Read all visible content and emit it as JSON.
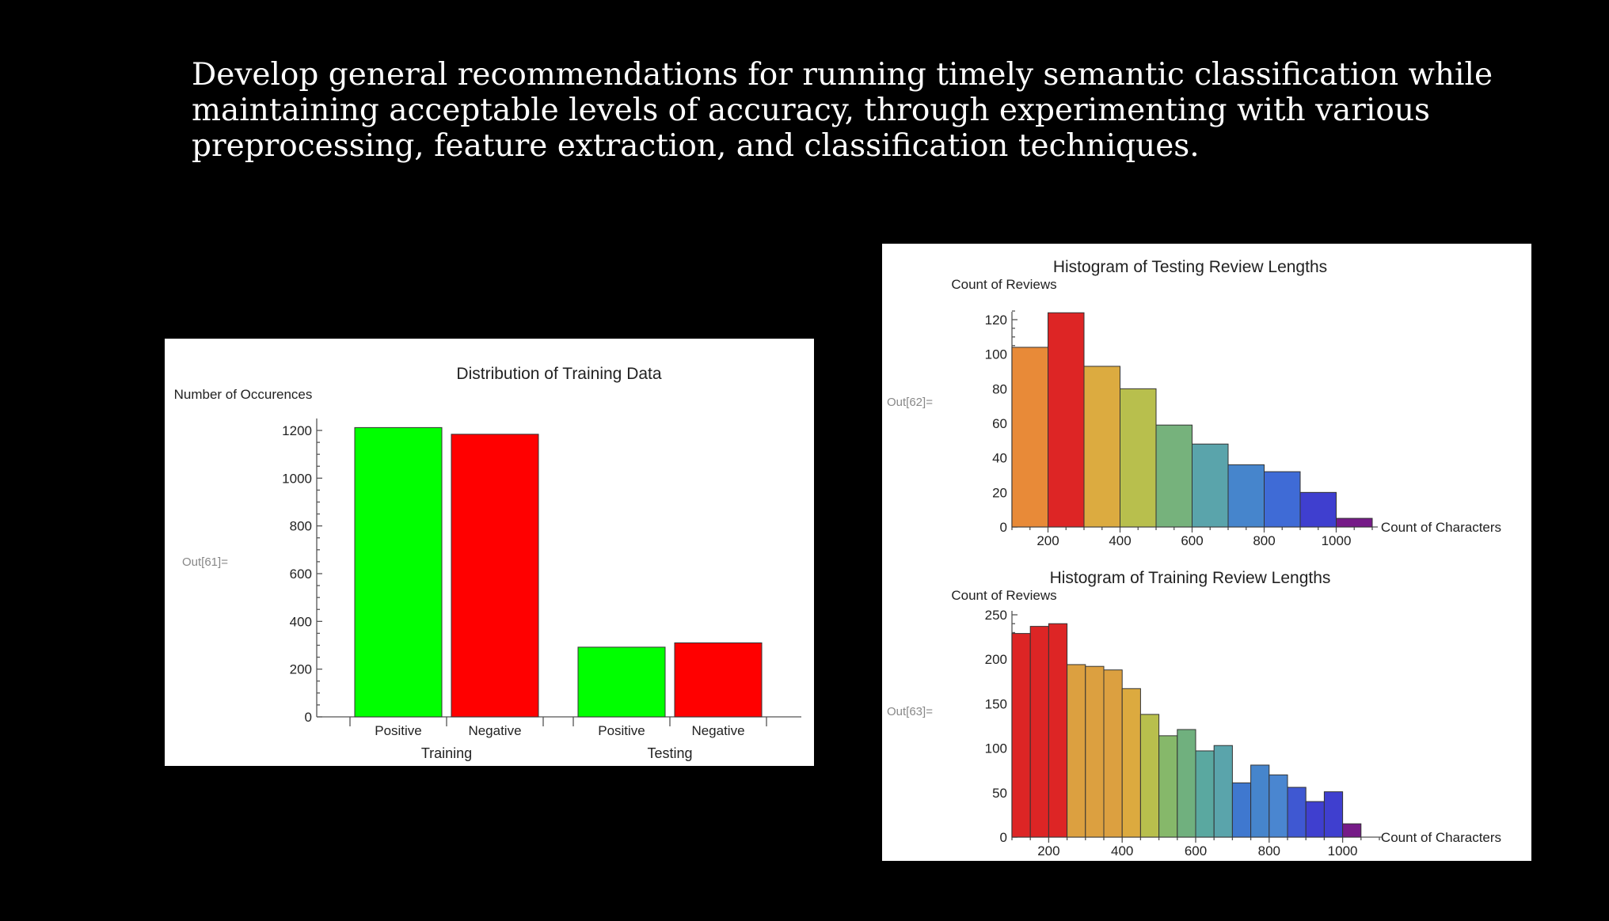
{
  "slide": {
    "title": "Develop general recommendations for running timely semantic classification while maintaining acceptable levels of accuracy, through experimenting with various preprocessing, feature extraction, and classification techniques."
  },
  "chart_data": [
    {
      "type": "bar",
      "out_label": "Out[61]=",
      "title": "Distribution of Training Data",
      "ylabel": "Number of Occurences",
      "xlabel": "",
      "ylim": [
        0,
        1250
      ],
      "yticks": [
        0,
        200,
        400,
        600,
        800,
        1000,
        1200
      ],
      "groups": [
        {
          "label": "Training",
          "bars": [
            {
              "label": "Positive",
              "value": 1212,
              "color": "#00ff00"
            },
            {
              "label": "Negative",
              "value": 1184,
              "color": "#ff0000"
            }
          ]
        },
        {
          "label": "Testing",
          "bars": [
            {
              "label": "Positive",
              "value": 292,
              "color": "#00ff00"
            },
            {
              "label": "Negative",
              "value": 310,
              "color": "#ff0000"
            }
          ]
        }
      ],
      "grid": false
    },
    {
      "type": "bar",
      "out_label": "Out[62]=",
      "title": "Histogram of Testing Review Lengths",
      "ylabel": "Count of Reviews",
      "xlabel": "Count of Characters",
      "xlim": [
        100,
        1100
      ],
      "ylim": [
        0,
        128
      ],
      "xticks": [
        200,
        400,
        600,
        800,
        1000
      ],
      "yticks": [
        0,
        20,
        40,
        60,
        80,
        100,
        120
      ],
      "bin_edges": [
        100,
        200,
        300,
        400,
        500,
        600,
        700,
        800,
        900,
        1000,
        1100
      ],
      "values": [
        104,
        124,
        93,
        80,
        59,
        48,
        36,
        32,
        20,
        5
      ],
      "colors": [
        "#e88a38",
        "#dd2525",
        "#dcab40",
        "#b8bf4d",
        "#76b27c",
        "#5aa4ab",
        "#4685cc",
        "#3f6bd6",
        "#3f3fcf",
        "#761b88"
      ],
      "grid": false
    },
    {
      "type": "bar",
      "out_label": "Out[63]=",
      "title": "Histogram of Training Review Lengths",
      "ylabel": "Count of Reviews",
      "xlabel": "Count of Characters",
      "xlim": [
        100,
        1100
      ],
      "ylim": [
        0,
        255
      ],
      "xticks": [
        200,
        400,
        600,
        800,
        1000
      ],
      "yticks": [
        0,
        50,
        100,
        150,
        200,
        250
      ],
      "bin_edges": [
        100,
        150,
        200,
        250,
        300,
        350,
        400,
        450,
        500,
        550,
        600,
        650,
        700,
        750,
        800,
        850,
        900,
        950,
        1000,
        1050
      ],
      "values": [
        229,
        237,
        240,
        194,
        192,
        188,
        167,
        138,
        114,
        121,
        97,
        103,
        61,
        81,
        70,
        56,
        40,
        51,
        15
      ],
      "colors": [
        "#dd2525",
        "#dd2525",
        "#dd2525",
        "#dca040",
        "#dca040",
        "#dca040",
        "#dcaa3f",
        "#b8bf4d",
        "#86b86a",
        "#70b07e",
        "#5aa8a0",
        "#5aa4ab",
        "#3f78cf",
        "#4685cc",
        "#4a86d0",
        "#3f58d2",
        "#3f3fcf",
        "#3f3fcf",
        "#761b88"
      ],
      "grid": false
    }
  ]
}
